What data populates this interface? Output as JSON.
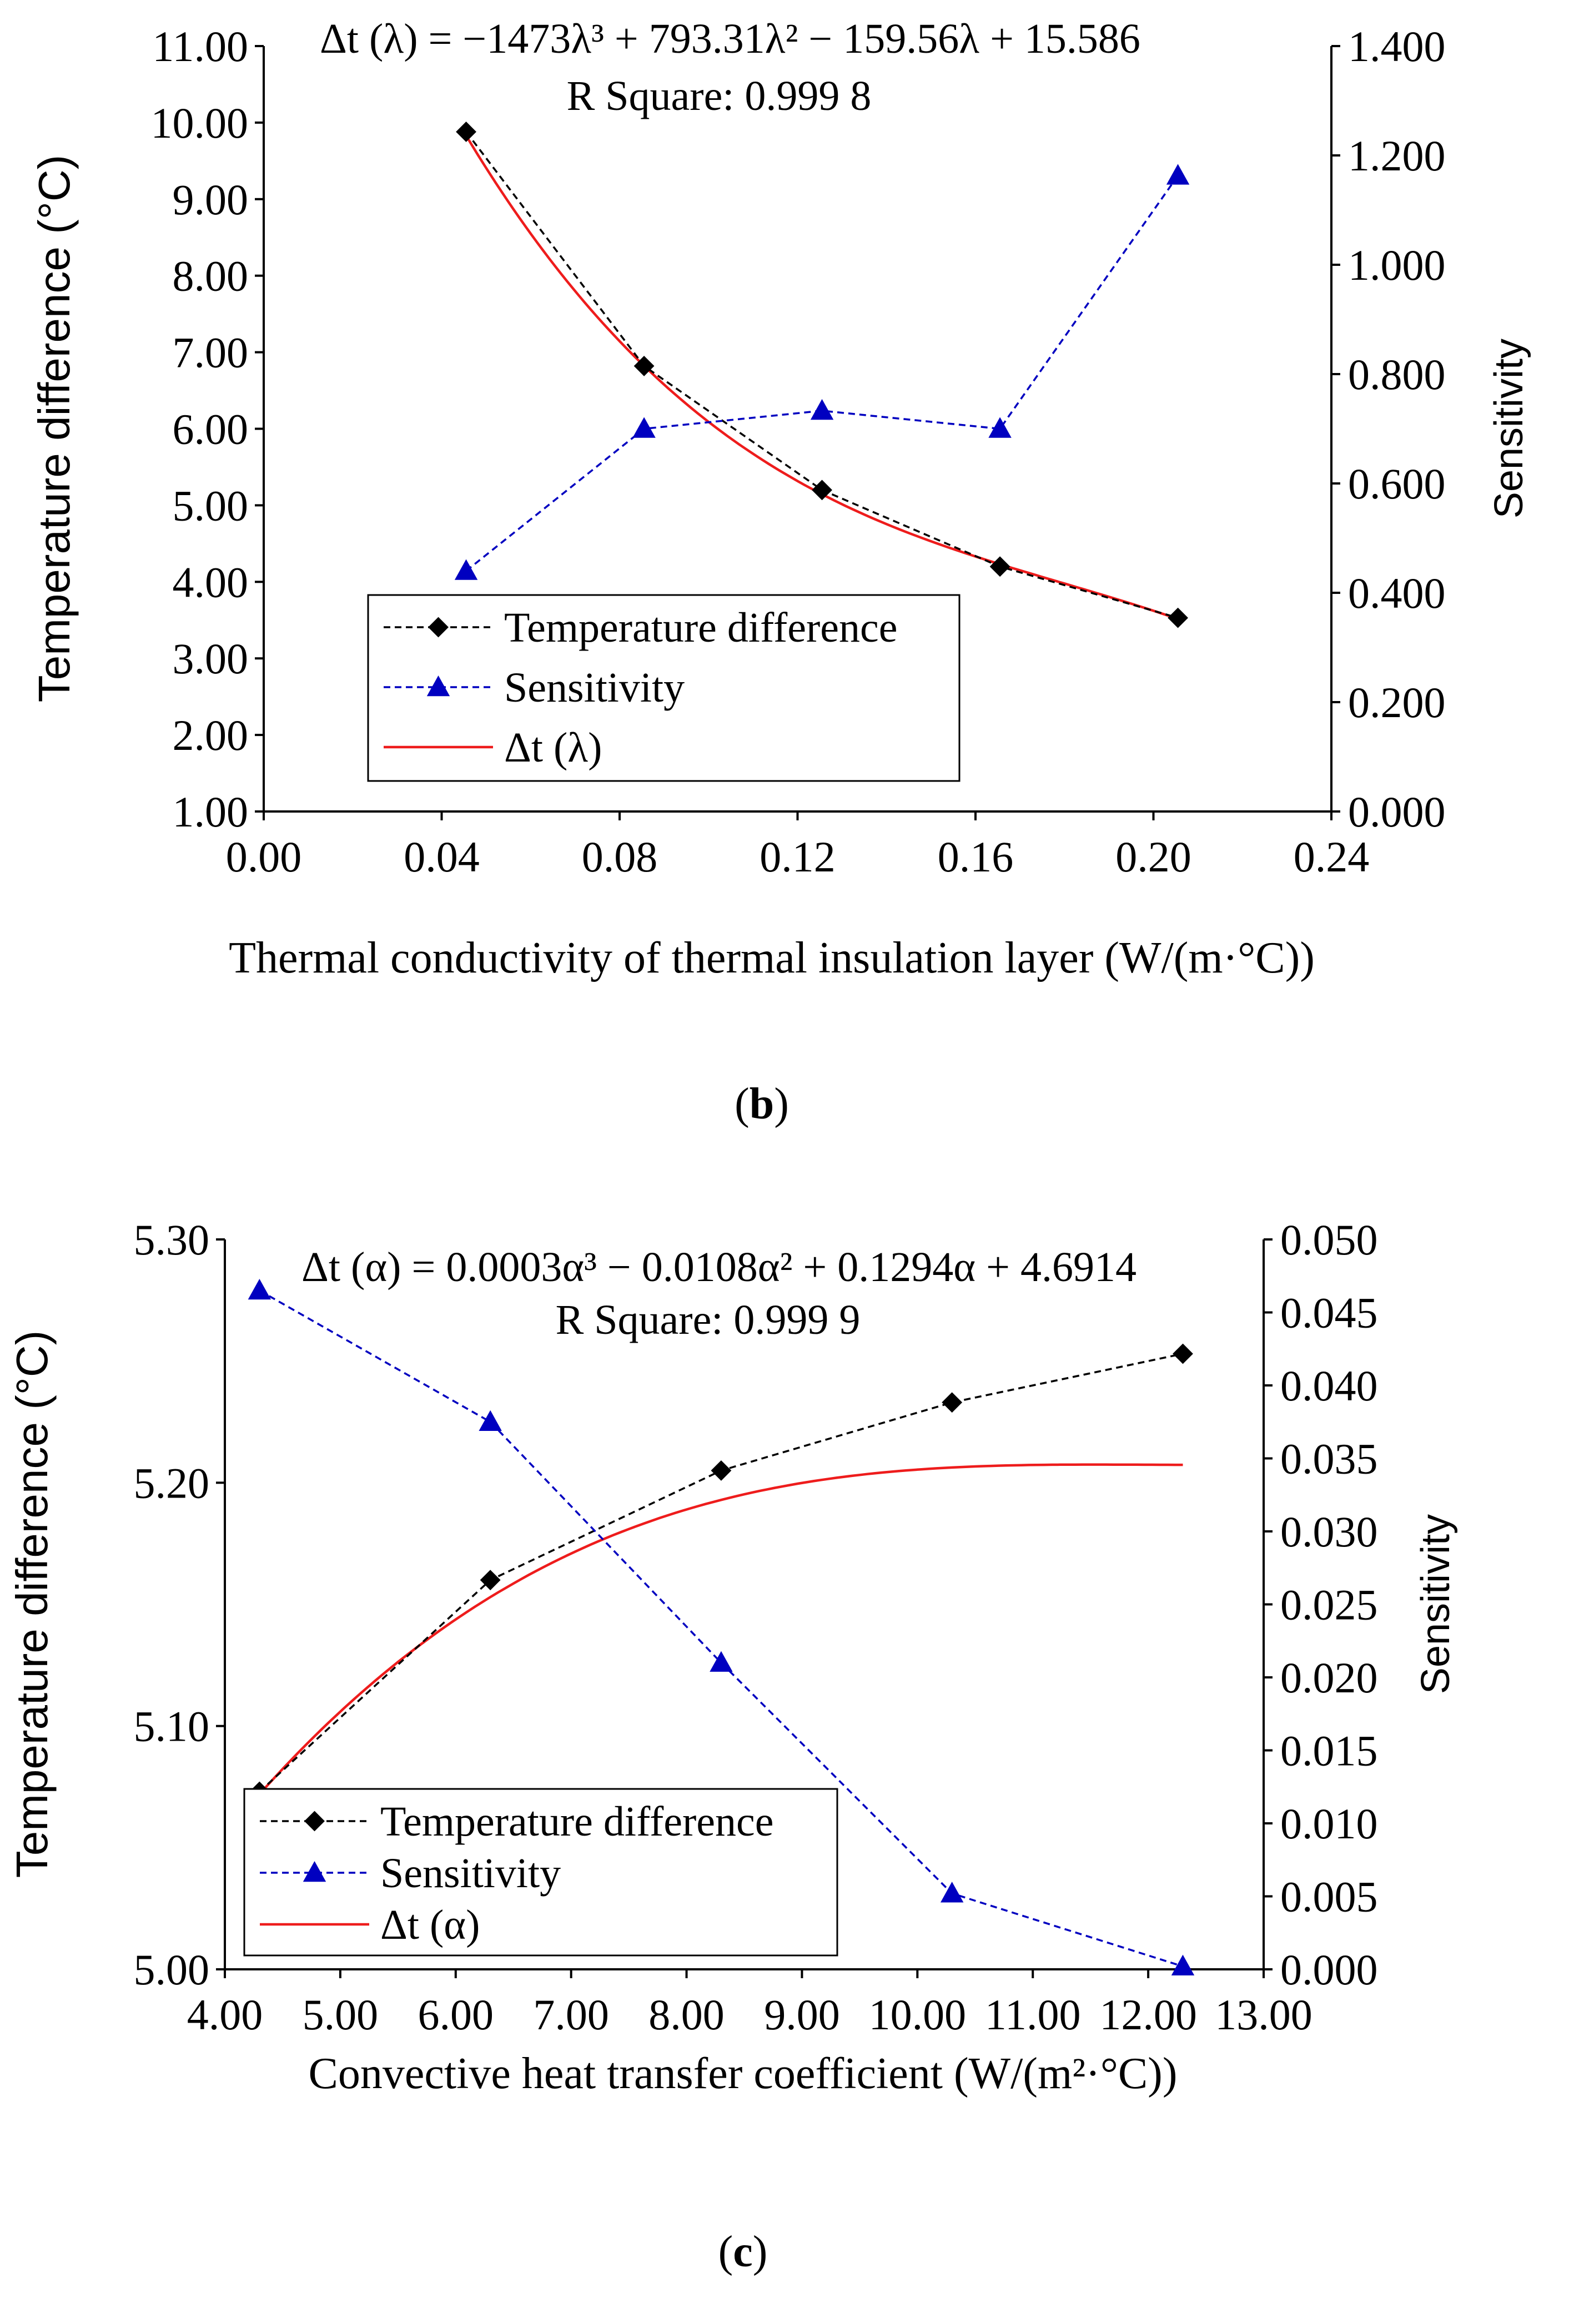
{
  "chart_data": [
    {
      "id": "b",
      "type": "line",
      "panel_label": "b",
      "xlabel": "Thermal conductivity of thermal insulation layer (W/(m·°C))",
      "ylabel_left": "Temperature difference  (°C)",
      "ylabel_right": "Sensitivity",
      "x_ticks": [
        "0.00",
        "0.04",
        "0.08",
        "0.12",
        "0.16",
        "0.20",
        "0.24"
      ],
      "y_left_ticks": [
        "1.00",
        "2.00",
        "3.00",
        "4.00",
        "5.00",
        "6.00",
        "7.00",
        "8.00",
        "9.00",
        "10.00",
        "11.00"
      ],
      "y_right_ticks": [
        "0.000",
        "0.200",
        "0.400",
        "0.600",
        "0.800",
        "1.000",
        "1.200",
        "1.400"
      ],
      "xlim": [
        0,
        0.24
      ],
      "ylim_left": [
        1,
        11
      ],
      "ylim_right": [
        0,
        1.4
      ],
      "equation": "Δt (λ) = −1473λ³ + 793.31λ² − 159.56λ + 15.586",
      "r_square": "R Square: 0.999 8",
      "coef": [
        -1473,
        793.31,
        -159.56,
        15.586
      ],
      "series": [
        {
          "name": "Temperature difference",
          "axis": "left",
          "style": "black-dashed-diamond",
          "x": [
            0.0455,
            0.0855,
            0.1255,
            0.1655,
            0.2055
          ],
          "y": [
            9.88,
            6.82,
            5.2,
            4.2,
            3.53
          ]
        },
        {
          "name": "Sensitivity",
          "axis": "right",
          "style": "blue-dashed-triangle",
          "x": [
            0.0455,
            0.0855,
            0.1255,
            0.1655,
            0.2055
          ],
          "y": [
            0.44,
            0.7,
            0.733,
            0.7,
            1.163
          ]
        },
        {
          "name": "Δt (λ)",
          "axis": "left",
          "style": "red-solid-fit",
          "x_range": [
            0.0455,
            0.2055
          ]
        }
      ],
      "legend": [
        "Temperature difference",
        "Sensitivity",
        "Δt (λ)"
      ],
      "legend_position": "lower-left"
    },
    {
      "id": "c",
      "type": "line",
      "panel_label": "c",
      "xlabel": "Convective heat transfer coefficient  (W/(m²·°C))",
      "ylabel_left": "Temperature difference  (°C)",
      "ylabel_right": "Sensitivity",
      "x_ticks": [
        "4.00",
        "5.00",
        "6.00",
        "7.00",
        "8.00",
        "9.00",
        "10.00",
        "11.00",
        "12.00",
        "13.00"
      ],
      "y_left_ticks": [
        "5.00",
        "5.10",
        "5.20",
        "5.30"
      ],
      "y_right_ticks": [
        "0.000",
        "0.005",
        "0.010",
        "0.015",
        "0.020",
        "0.025",
        "0.030",
        "0.035",
        "0.040",
        "0.045",
        "0.050"
      ],
      "xlim": [
        4,
        13
      ],
      "ylim_left": [
        5.0,
        5.3
      ],
      "ylim_right": [
        0,
        0.05
      ],
      "equation": "Δt (α) = 0.0003α³ − 0.0108α² + 0.1294α + 4.6914",
      "r_square": "R Square: 0.999 9",
      "coef": [
        0.0003,
        -0.0108,
        0.1294,
        4.6914
      ],
      "series": [
        {
          "name": "Temperature difference",
          "axis": "left",
          "style": "black-dashed-diamond",
          "x": [
            4.3,
            6.3,
            8.3,
            10.3,
            12.3
          ],
          "y": [
            5.073,
            5.16,
            5.205,
            5.233,
            5.253
          ]
        },
        {
          "name": "Sensitivity",
          "axis": "right",
          "style": "blue-dashed-triangle",
          "x": [
            4.3,
            6.3,
            8.3,
            10.3,
            12.3
          ],
          "y": [
            0.0465,
            0.0375,
            0.021,
            0.0052,
            0.0002
          ]
        },
        {
          "name": "Δt (α)",
          "axis": "left",
          "style": "red-solid-fit",
          "x_range": [
            4.3,
            12.3
          ]
        }
      ],
      "legend": [
        "Temperature difference",
        "Sensitivity",
        "Δt (α)"
      ],
      "legend_position": "lower-left"
    }
  ]
}
